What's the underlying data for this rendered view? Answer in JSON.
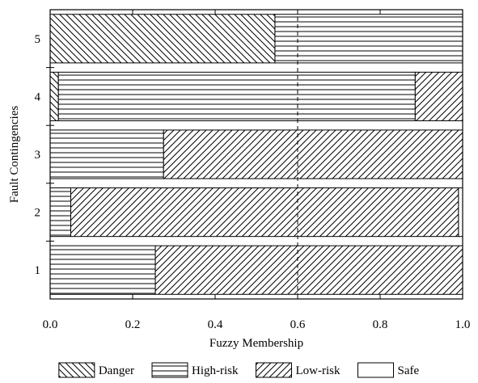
{
  "chart_data": {
    "type": "bar",
    "orientation": "horizontal",
    "stacked": true,
    "title": "",
    "xlabel": "Fuzzy Membership",
    "ylabel": "Fault Contingencies",
    "xlim": [
      0,
      1
    ],
    "categories": [
      "1",
      "2",
      "3",
      "4",
      "5"
    ],
    "xticks": [
      "0.0",
      "0.2",
      "0.4",
      "0.6",
      "0.8",
      "1.0"
    ],
    "reference_line": {
      "x": 0.6,
      "style": "dashed"
    },
    "series": [
      {
        "name": "Danger",
        "pattern": "backslash",
        "values": [
          0,
          0,
          0,
          0.02,
          0.545
        ]
      },
      {
        "name": "High-risk",
        "pattern": "horizontal",
        "values": [
          0.255,
          0.05,
          0.275,
          0.865,
          0.455
        ]
      },
      {
        "name": "Low-risk",
        "pattern": "slash",
        "values": [
          0.745,
          0.94,
          0.725,
          0.115,
          0
        ]
      },
      {
        "name": "Safe",
        "pattern": "none",
        "values": [
          0,
          0.01,
          0,
          0,
          0
        ]
      }
    ],
    "grid": false,
    "legend_position": "bottom",
    "colors": {
      "stroke": "#000000",
      "background": "#ffffff"
    }
  }
}
